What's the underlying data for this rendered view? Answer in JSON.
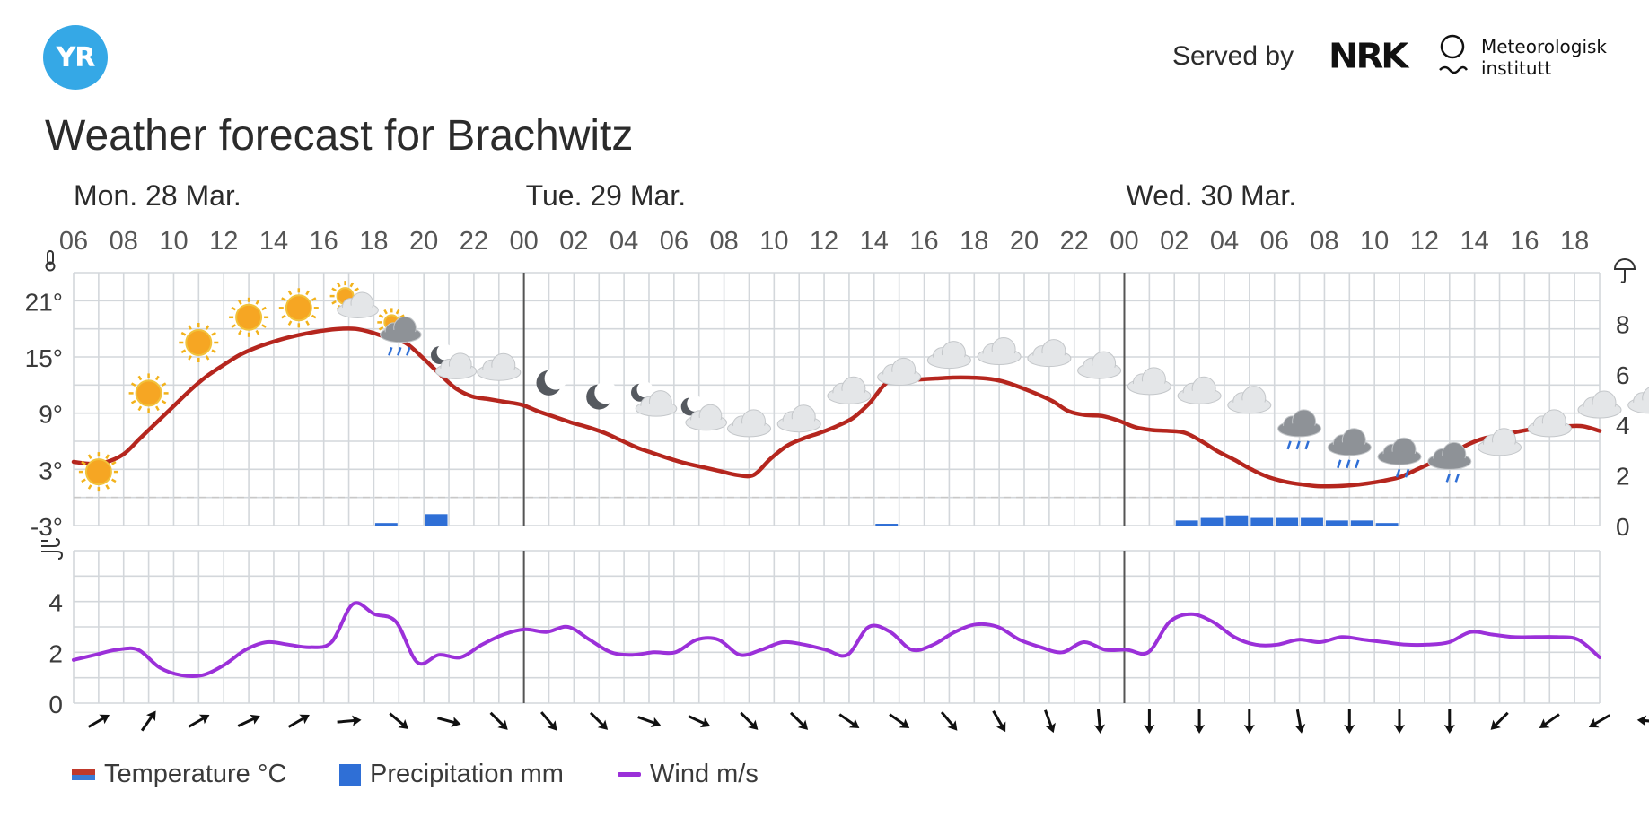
{
  "header": {
    "logo_text": "YR",
    "served_by": "Served by",
    "nrk_logo": "NRK",
    "met_line1": "Meteorologisk",
    "met_line2": "institutt"
  },
  "title": "Weather forecast for Brachwitz",
  "legend": {
    "temperature": "Temperature °C",
    "precipitation": "Precipitation mm",
    "wind": "Wind m/s"
  },
  "colors": {
    "temperature": "#b5261e",
    "precipitation": "#2f6fd6",
    "wind": "#9b30d9",
    "grid": "#d3d7db",
    "day_divider": "#555555",
    "zero_line": "#c8c8c8"
  },
  "chart_data": {
    "type": "line",
    "days": [
      {
        "label": "Mon. 28 Mar.",
        "start_hour_index": 0
      },
      {
        "label": "Tue. 29 Mar.",
        "start_hour_index": 18
      },
      {
        "label": "Wed. 30 Mar.",
        "start_hour_index": 42
      }
    ],
    "hour_tick_labels": [
      "06",
      "08",
      "10",
      "12",
      "14",
      "16",
      "18",
      "20",
      "22",
      "00",
      "02",
      "04",
      "06",
      "08",
      "10",
      "12",
      "14",
      "16",
      "18",
      "20",
      "22",
      "00",
      "02",
      "04",
      "06",
      "08",
      "10",
      "12",
      "14",
      "16",
      "18"
    ],
    "temperature": {
      "unit": "°C",
      "y_ticks": [
        "21°",
        "15°",
        "9°",
        "3°",
        "-3°"
      ],
      "ylim": [
        -3,
        24
      ],
      "zero_line": 0,
      "values": [
        3.8,
        3.6,
        3.8,
        4.6,
        6.3,
        8.0,
        9.7,
        11.4,
        12.9,
        14.1,
        15.2,
        16.0,
        16.6,
        17.1,
        17.5,
        17.8,
        18.0,
        18.0,
        17.6,
        17.0,
        16.5,
        15.0,
        13.3,
        11.7,
        10.8,
        10.5,
        10.2,
        9.9,
        9.2,
        8.6,
        8.0,
        7.5,
        6.9,
        6.1,
        5.3,
        4.7,
        4.1,
        3.6,
        3.2,
        2.8,
        2.4,
        2.4,
        4.1,
        5.5,
        6.3,
        6.9,
        7.6,
        8.5,
        10.1,
        12.2,
        12.5,
        12.6,
        12.7,
        12.8,
        12.8,
        12.7,
        12.4,
        11.8,
        11.1,
        10.3,
        9.2,
        8.8,
        8.7,
        8.2,
        7.5,
        7.2,
        7.1,
        6.9,
        6.0,
        4.9,
        4.0,
        3.0,
        2.2,
        1.7,
        1.4,
        1.2,
        1.2,
        1.3,
        1.5,
        1.8,
        2.2,
        3.0,
        3.8,
        4.6,
        5.6,
        6.3,
        6.6,
        7.0,
        7.3,
        7.5,
        7.6,
        7.6,
        7.1
      ]
    },
    "precipitation": {
      "unit": "mm",
      "y_ticks": [
        "8",
        "6",
        "4",
        "2",
        "0"
      ],
      "ylim": [
        0,
        10
      ],
      "values": [
        0,
        0,
        0,
        0,
        0,
        0,
        0,
        0,
        0,
        0,
        0,
        0,
        0.1,
        0,
        0.45,
        0,
        0,
        0,
        0,
        0,
        0,
        0,
        0,
        0,
        0,
        0,
        0,
        0,
        0,
        0,
        0,
        0,
        0.07,
        0,
        0,
        0,
        0,
        0,
        0,
        0,
        0,
        0,
        0,
        0,
        0.2,
        0.3,
        0.4,
        0.3,
        0.3,
        0.3,
        0.2,
        0.2,
        0.1,
        0,
        0,
        0,
        0,
        0,
        0,
        0,
        0
      ]
    },
    "wind": {
      "unit": "m/s",
      "y_ticks": [
        "4",
        "2",
        "0"
      ],
      "ylim": [
        0,
        6
      ],
      "values": [
        1.7,
        1.9,
        2.1,
        2.1,
        1.4,
        1.1,
        1.1,
        1.5,
        2.1,
        2.4,
        2.3,
        2.2,
        2.4,
        3.9,
        3.5,
        3.2,
        1.6,
        1.9,
        1.8,
        2.3,
        2.7,
        2.9,
        2.8,
        3.0,
        2.5,
        2.0,
        1.9,
        2.0,
        2.0,
        2.5,
        2.5,
        1.9,
        2.1,
        2.4,
        2.3,
        2.1,
        1.9,
        3.0,
        2.8,
        2.1,
        2.3,
        2.8,
        3.1,
        3.0,
        2.5,
        2.2,
        2.0,
        2.4,
        2.1,
        2.1,
        2.0,
        3.2,
        3.5,
        3.2,
        2.6,
        2.3,
        2.3,
        2.5,
        2.4,
        2.6,
        2.5,
        2.4,
        2.3,
        2.3,
        2.4,
        2.8,
        2.7,
        2.6,
        2.6,
        2.6,
        2.5,
        1.8
      ]
    },
    "wind_directions_deg": [
      60,
      35,
      60,
      65,
      60,
      85,
      130,
      105,
      135,
      140,
      135,
      110,
      115,
      135,
      135,
      125,
      125,
      140,
      150,
      160,
      175,
      180,
      180,
      180,
      170,
      180,
      180,
      180,
      225,
      235,
      240,
      275
    ],
    "weather_symbols": [
      "sun",
      "sun",
      "sun",
      "sun",
      "sun",
      "partly-cloudy-day",
      "rain-showers-sun",
      "moon-cloud",
      "cloud",
      "moon",
      "moon",
      "moon-cloud",
      "moon-cloud",
      "cloud",
      "cloud",
      "cloud",
      "cloud",
      "cloud",
      "cloud",
      "cloud",
      "cloud",
      "cloud",
      "cloud",
      "cloud",
      "rain",
      "rain",
      "snow-rain",
      "snow-rain",
      "cloud",
      "cloud",
      "cloud",
      "cloud"
    ]
  }
}
